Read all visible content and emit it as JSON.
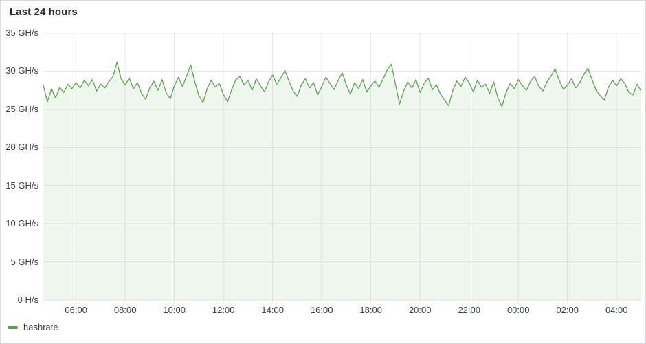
{
  "title": "Last 24 hours",
  "legend": {
    "items": [
      {
        "label": "hashrate",
        "color": "#56a64b"
      }
    ]
  },
  "colors": {
    "line": "#56a64b",
    "area_fill": "rgba(86,166,75,0.10)",
    "grid": "#e6e7e9",
    "axis_text": "#3c4046",
    "title_text": "#24292e",
    "panel_border": "#d8d9da",
    "background": "#ffffff"
  },
  "chart_data": {
    "type": "area",
    "title": "Last 24 hours",
    "xlabel": "",
    "ylabel": "",
    "unit": "GH/s",
    "grid": true,
    "legend_position": "bottom-left",
    "ylim": [
      0,
      35
    ],
    "y_ticks": [
      {
        "label": "0 H/s",
        "value": 0
      },
      {
        "label": "5 GH/s",
        "value": 5
      },
      {
        "label": "10 GH/s",
        "value": 10
      },
      {
        "label": "15 GH/s",
        "value": 15
      },
      {
        "label": "20 GH/s",
        "value": 20
      },
      {
        "label": "25 GH/s",
        "value": 25
      },
      {
        "label": "30 GH/s",
        "value": 30
      },
      {
        "label": "35 GH/s",
        "value": 35
      }
    ],
    "x_ticks": [
      {
        "label": "06:00",
        "minutes": 360
      },
      {
        "label": "08:00",
        "minutes": 480
      },
      {
        "label": "10:00",
        "minutes": 600
      },
      {
        "label": "12:00",
        "minutes": 720
      },
      {
        "label": "14:00",
        "minutes": 840
      },
      {
        "label": "16:00",
        "minutes": 960
      },
      {
        "label": "18:00",
        "minutes": 1080
      },
      {
        "label": "20:00",
        "minutes": 1200
      },
      {
        "label": "22:00",
        "minutes": 1320
      },
      {
        "label": "00:00",
        "minutes": 1440
      },
      {
        "label": "02:00",
        "minutes": 1560
      },
      {
        "label": "04:00",
        "minutes": 1680
      }
    ],
    "x_range_minutes": [
      280,
      1740
    ],
    "x_step_minutes": 10,
    "series": [
      {
        "name": "hashrate",
        "color": "#56a64b",
        "values": [
          28.2,
          26.0,
          27.7,
          26.5,
          27.9,
          27.2,
          28.3,
          27.7,
          28.5,
          27.8,
          28.8,
          28.1,
          28.9,
          27.4,
          28.3,
          27.8,
          28.6,
          29.3,
          31.2,
          29.0,
          28.2,
          29.1,
          27.7,
          28.5,
          27.1,
          26.3,
          27.8,
          28.7,
          27.5,
          28.9,
          27.2,
          26.4,
          28.1,
          29.2,
          28.0,
          29.4,
          30.8,
          28.6,
          26.8,
          25.9,
          27.7,
          28.8,
          27.9,
          28.4,
          26.9,
          26.0,
          27.6,
          28.9,
          29.3,
          28.2,
          28.8,
          27.5,
          29.0,
          28.1,
          27.3,
          28.6,
          29.5,
          28.3,
          29.1,
          30.1,
          28.7,
          27.4,
          26.7,
          28.2,
          29.0,
          27.8,
          28.5,
          26.9,
          28.0,
          29.2,
          28.4,
          27.6,
          28.8,
          29.8,
          28.2,
          27.0,
          28.5,
          27.7,
          28.9,
          27.3,
          28.1,
          28.7,
          27.9,
          29.0,
          30.2,
          30.9,
          28.3,
          25.7,
          27.4,
          28.6,
          27.8,
          28.9,
          27.2,
          28.4,
          29.1,
          27.6,
          28.2,
          27.0,
          26.2,
          25.5,
          27.5,
          28.7,
          28.0,
          29.2,
          28.5,
          27.3,
          28.8,
          27.9,
          28.3,
          27.1,
          28.6,
          26.5,
          25.4,
          27.2,
          28.4,
          27.7,
          28.9,
          28.1,
          27.5,
          28.7,
          29.3,
          28.0,
          27.4,
          28.6,
          29.4,
          30.3,
          28.8,
          27.6,
          28.2,
          29.0,
          27.8,
          28.5,
          29.6,
          30.4,
          28.9,
          27.5,
          26.8,
          26.2,
          27.9,
          28.8,
          28.1,
          29.0,
          28.4,
          27.2,
          26.9,
          28.3,
          27.4
        ]
      }
    ]
  }
}
